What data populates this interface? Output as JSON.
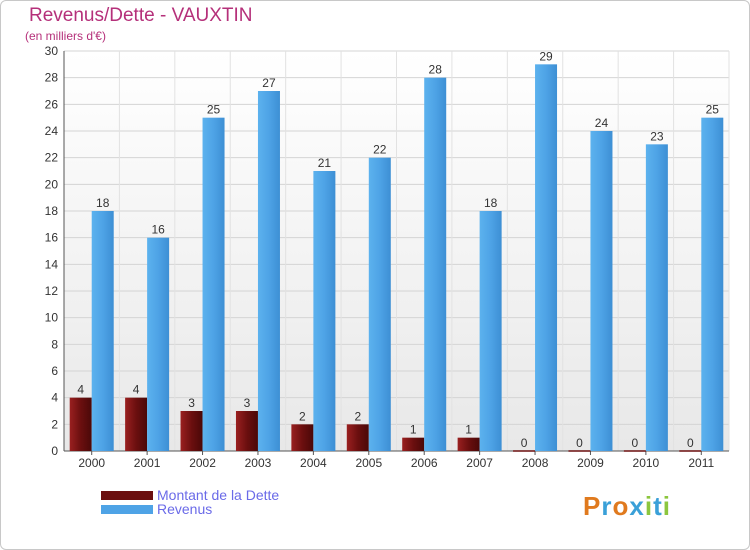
{
  "header": {
    "title": "Revenus/Dette - VAUXTIN",
    "subtitle": "(en milliers d'€)"
  },
  "legend": {
    "items": [
      {
        "label": "Montant de la Dette",
        "color": "#6b0f0f"
      },
      {
        "label": "Revenus",
        "color": "#4ea3e6"
      }
    ]
  },
  "logo": {
    "letters": [
      "P",
      "r",
      "o",
      "x",
      "i",
      "t",
      "i"
    ],
    "colors": [
      "#e07a1e",
      "#3aa0d8",
      "#e07a1e",
      "#3aa0d8",
      "#8cc63e",
      "#3aa0d8",
      "#8cc63e"
    ]
  },
  "chart_data": {
    "type": "bar",
    "categories": [
      "2000",
      "2001",
      "2002",
      "2003",
      "2004",
      "2005",
      "2006",
      "2007",
      "2008",
      "2009",
      "2010",
      "2011"
    ],
    "series": [
      {
        "name": "Montant de la Dette",
        "values": [
          4,
          4,
          3,
          3,
          2,
          2,
          1,
          1,
          0,
          0,
          0,
          0
        ],
        "color": "#6b0f0f"
      },
      {
        "name": "Revenus",
        "values": [
          18,
          16,
          25,
          27,
          21,
          22,
          28,
          18,
          29,
          24,
          23,
          25
        ],
        "color": "#4ea3e6"
      }
    ],
    "title": "Revenus/Dette - VAUXTIN",
    "subtitle": "(en milliers d'€)",
    "ylim": [
      0,
      30
    ],
    "yticks": [
      0,
      2,
      4,
      6,
      8,
      10,
      12,
      14,
      16,
      18,
      20,
      22,
      24,
      26,
      28,
      30
    ],
    "grid": true,
    "legend_position": "bottom-left"
  }
}
